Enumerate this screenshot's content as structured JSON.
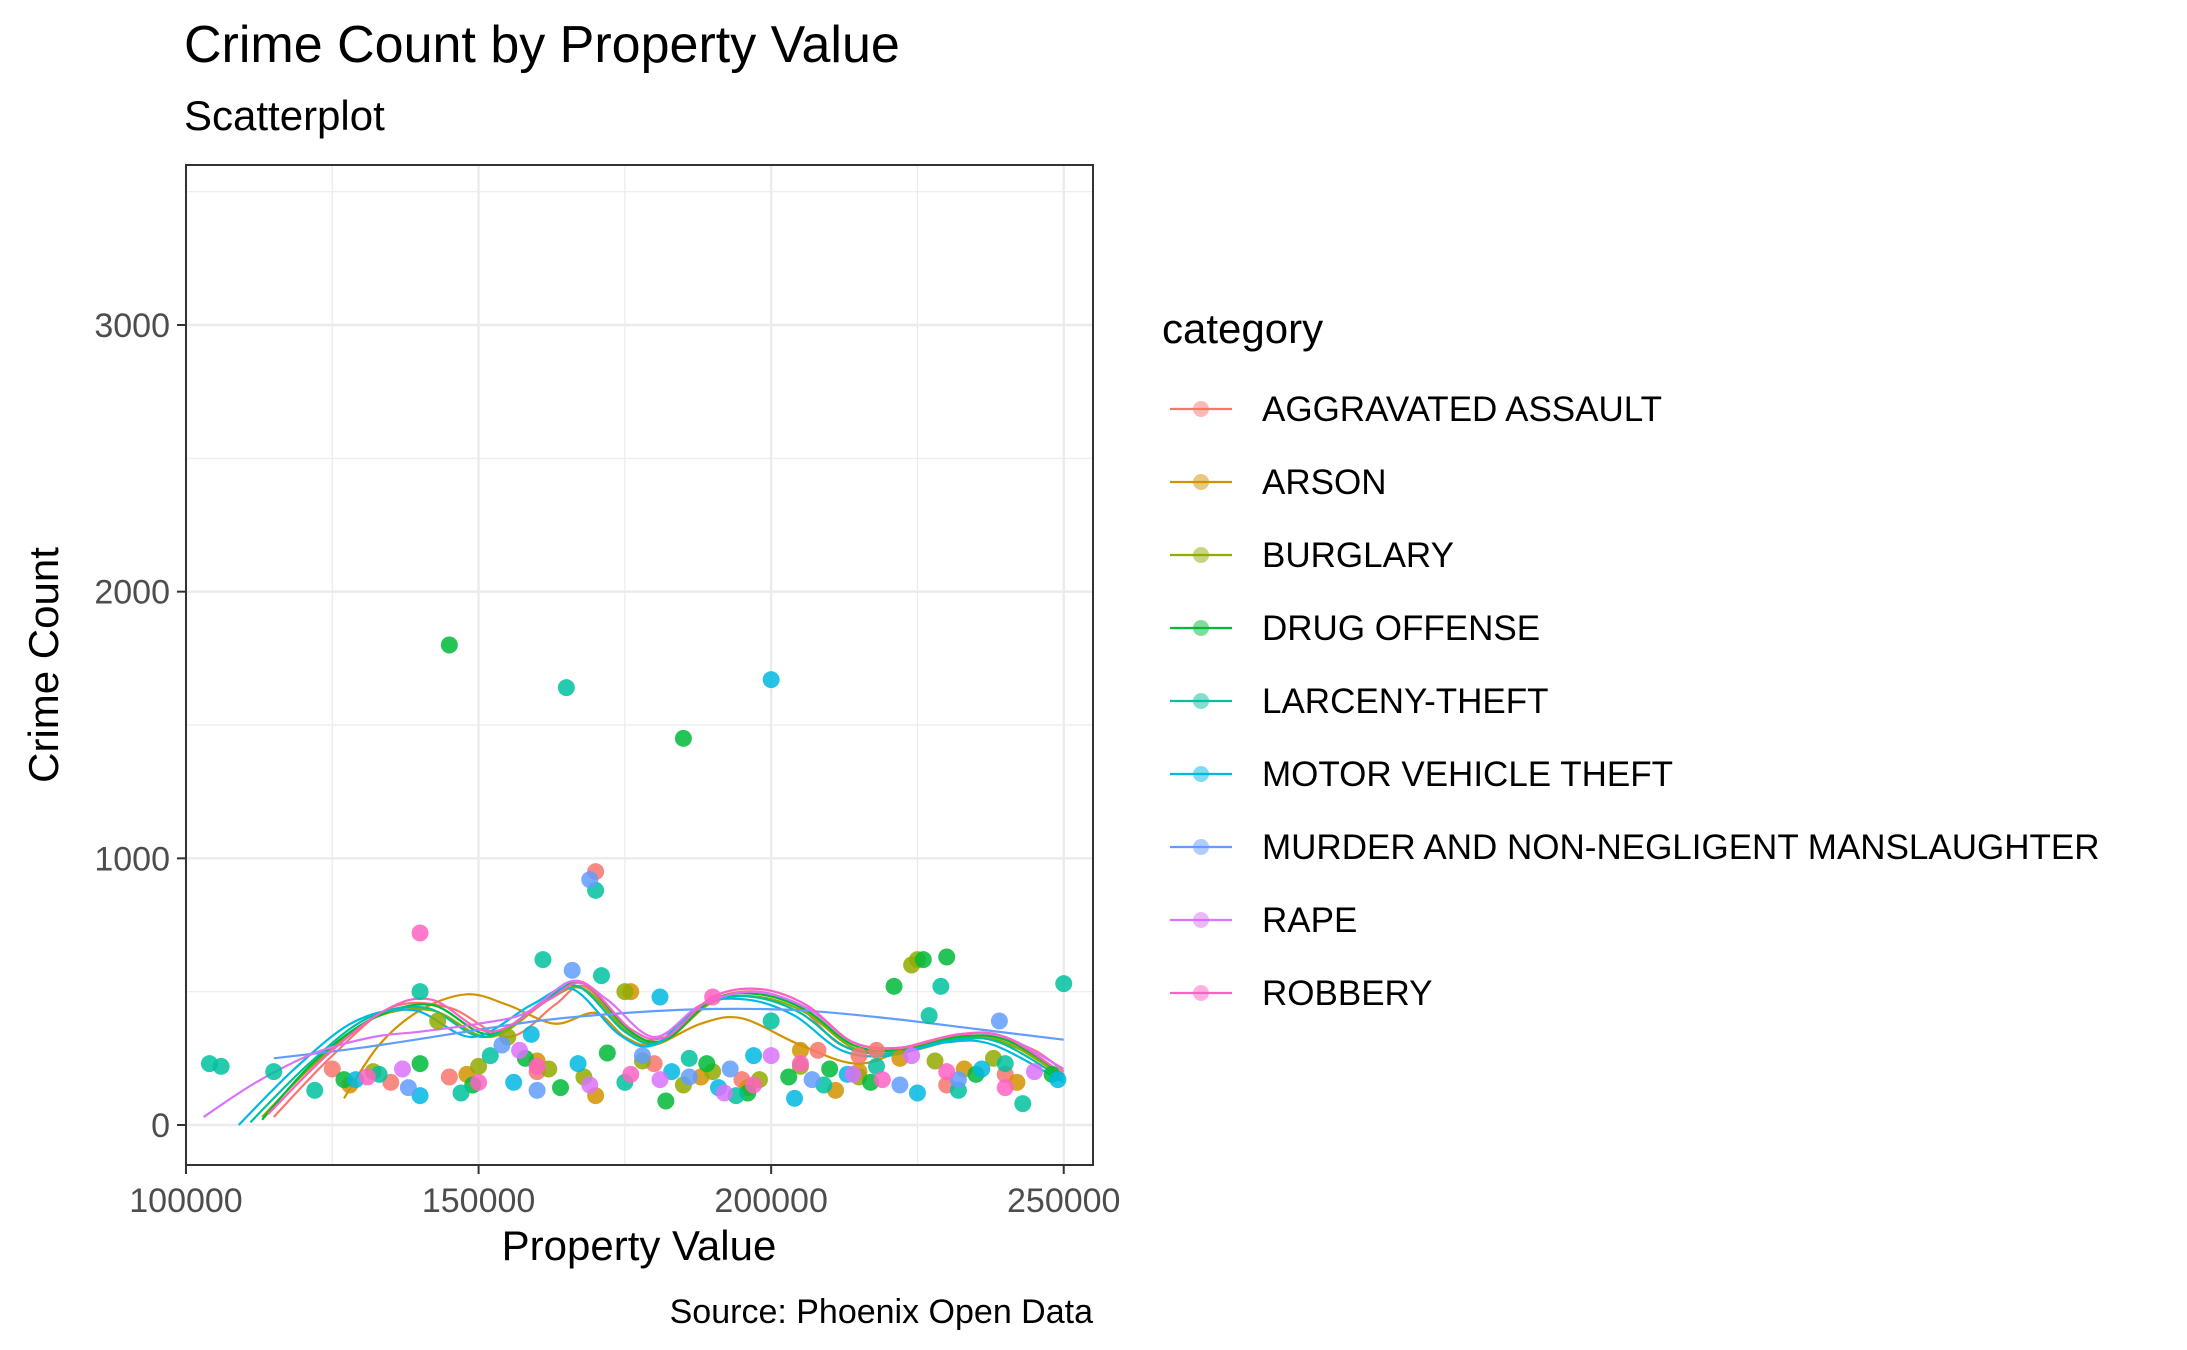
{
  "chart_data": {
    "type": "scatter",
    "title": "Crime Count by Property Value",
    "subtitle": "Scatterplot",
    "xlabel": "Property Value",
    "ylabel": "Crime Count",
    "caption": "Source: Phoenix Open Data",
    "xlim": [
      100000,
      255000
    ],
    "ylim": [
      -150,
      3600
    ],
    "x_ticks": [
      100000,
      150000,
      200000,
      250000
    ],
    "x_tick_labels": [
      "100000",
      "150000",
      "200000",
      "250000"
    ],
    "y_ticks": [
      0,
      1000,
      2000,
      3000
    ],
    "y_tick_labels": [
      "0",
      "1000",
      "2000",
      "3000"
    ],
    "grid": true,
    "legend": {
      "title": "category",
      "placement": "right"
    },
    "series": [
      {
        "name": "AGGRAVATED ASSAULT",
        "color": "#F8766D",
        "points": [
          [
            170000,
            950
          ],
          [
            208000,
            280
          ],
          [
            215000,
            260
          ],
          [
            218000,
            280
          ],
          [
            160000,
            200
          ],
          [
            145000,
            180
          ],
          [
            195000,
            170
          ],
          [
            230000,
            150
          ],
          [
            125000,
            210
          ],
          [
            180000,
            230
          ],
          [
            240000,
            190
          ],
          [
            135000,
            160
          ]
        ],
        "smooth": [
          [
            115000,
            30
          ],
          [
            125000,
            260
          ],
          [
            135000,
            440
          ],
          [
            145000,
            440
          ],
          [
            155000,
            330
          ],
          [
            163000,
            450
          ],
          [
            168000,
            520
          ],
          [
            175000,
            370
          ],
          [
            180000,
            320
          ],
          [
            190000,
            470
          ],
          [
            198000,
            500
          ],
          [
            205000,
            440
          ],
          [
            212000,
            300
          ],
          [
            220000,
            280
          ],
          [
            230000,
            330
          ],
          [
            238000,
            330
          ],
          [
            245000,
            280
          ],
          [
            250000,
            200
          ]
        ]
      },
      {
        "name": "ARSON",
        "color": "#D39200",
        "points": [
          [
            205000,
            280
          ],
          [
            222000,
            250
          ],
          [
            188000,
            180
          ],
          [
            160000,
            240
          ],
          [
            148000,
            190
          ],
          [
            233000,
            210
          ],
          [
            128000,
            150
          ],
          [
            176000,
            500
          ],
          [
            211000,
            130
          ],
          [
            196000,
            140
          ],
          [
            242000,
            160
          ],
          [
            215000,
            200
          ],
          [
            170000,
            110
          ]
        ],
        "smooth": [
          [
            127000,
            100
          ],
          [
            133000,
            300
          ],
          [
            140000,
            430
          ],
          [
            148000,
            490
          ],
          [
            155000,
            450
          ],
          [
            163000,
            380
          ],
          [
            170000,
            420
          ],
          [
            175000,
            330
          ],
          [
            180000,
            300
          ],
          [
            188000,
            380
          ],
          [
            195000,
            400
          ],
          [
            205000,
            300
          ],
          [
            215000,
            230
          ],
          [
            225000,
            300
          ],
          [
            235000,
            330
          ],
          [
            245000,
            260
          ],
          [
            250000,
            160
          ]
        ]
      },
      {
        "name": "BURGLARY",
        "color": "#93AA00",
        "points": [
          [
            225000,
            620
          ],
          [
            224000,
            600
          ],
          [
            175000,
            500
          ],
          [
            143000,
            390
          ],
          [
            155000,
            330
          ],
          [
            162000,
            210
          ],
          [
            178000,
            240
          ],
          [
            190000,
            200
          ],
          [
            205000,
            220
          ],
          [
            132000,
            200
          ],
          [
            228000,
            240
          ],
          [
            168000,
            180
          ],
          [
            185000,
            150
          ],
          [
            238000,
            250
          ],
          [
            198000,
            170
          ],
          [
            150000,
            220
          ],
          [
            215000,
            180
          ]
        ],
        "smooth": [
          [
            113000,
            30
          ],
          [
            122000,
            230
          ],
          [
            132000,
            400
          ],
          [
            142000,
            430
          ],
          [
            152000,
            330
          ],
          [
            162000,
            470
          ],
          [
            168000,
            510
          ],
          [
            176000,
            340
          ],
          [
            182000,
            320
          ],
          [
            190000,
            460
          ],
          [
            198000,
            480
          ],
          [
            206000,
            420
          ],
          [
            214000,
            290
          ],
          [
            222000,
            270
          ],
          [
            232000,
            320
          ],
          [
            240000,
            310
          ],
          [
            250000,
            180
          ]
        ]
      },
      {
        "name": "DRUG OFFENSE",
        "color": "#00BA38",
        "points": [
          [
            145000,
            1800
          ],
          [
            185000,
            1450
          ],
          [
            226000,
            620
          ],
          [
            230000,
            630
          ],
          [
            221000,
            520
          ],
          [
            140000,
            230
          ],
          [
            158000,
            250
          ],
          [
            172000,
            270
          ],
          [
            189000,
            230
          ],
          [
            203000,
            180
          ],
          [
            217000,
            160
          ],
          [
            235000,
            190
          ],
          [
            127000,
            170
          ],
          [
            164000,
            140
          ],
          [
            196000,
            120
          ],
          [
            248000,
            190
          ],
          [
            182000,
            90
          ],
          [
            149000,
            150
          ],
          [
            210000,
            210
          ]
        ],
        "smooth": [
          [
            113000,
            20
          ],
          [
            122000,
            240
          ],
          [
            132000,
            400
          ],
          [
            142000,
            450
          ],
          [
            152000,
            340
          ],
          [
            162000,
            480
          ],
          [
            168000,
            530
          ],
          [
            176000,
            350
          ],
          [
            182000,
            320
          ],
          [
            190000,
            470
          ],
          [
            198000,
            490
          ],
          [
            206000,
            430
          ],
          [
            214000,
            300
          ],
          [
            222000,
            280
          ],
          [
            232000,
            330
          ],
          [
            240000,
            320
          ],
          [
            250000,
            190
          ]
        ]
      },
      {
        "name": "LARCENY-THEFT",
        "color": "#00C19F",
        "points": [
          [
            165000,
            1640
          ],
          [
            170000,
            880
          ],
          [
            250000,
            530
          ],
          [
            229000,
            520
          ],
          [
            161000,
            620
          ],
          [
            171000,
            560
          ],
          [
            140000,
            500
          ],
          [
            227000,
            410
          ],
          [
            200000,
            390
          ],
          [
            152000,
            260
          ],
          [
            186000,
            250
          ],
          [
            218000,
            220
          ],
          [
            240000,
            230
          ],
          [
            133000,
            190
          ],
          [
            175000,
            160
          ],
          [
            209000,
            150
          ],
          [
            194000,
            110
          ],
          [
            147000,
            120
          ],
          [
            122000,
            130
          ],
          [
            232000,
            130
          ],
          [
            243000,
            80
          ],
          [
            104000,
            230
          ],
          [
            106000,
            220
          ],
          [
            115000,
            200
          ]
        ],
        "smooth": [
          [
            111000,
            10
          ],
          [
            121000,
            230
          ],
          [
            131000,
            400
          ],
          [
            141000,
            440
          ],
          [
            151000,
            330
          ],
          [
            161000,
            460
          ],
          [
            167000,
            520
          ],
          [
            175000,
            350
          ],
          [
            181000,
            310
          ],
          [
            189000,
            460
          ],
          [
            197000,
            480
          ],
          [
            205000,
            420
          ],
          [
            213000,
            290
          ],
          [
            221000,
            270
          ],
          [
            231000,
            320
          ],
          [
            239000,
            310
          ],
          [
            250000,
            170
          ]
        ]
      },
      {
        "name": "MOTOR VEHICLE THEFT",
        "color": "#00B9E3",
        "points": [
          [
            200000,
            1670
          ],
          [
            181000,
            480
          ],
          [
            159000,
            340
          ],
          [
            197000,
            260
          ],
          [
            140000,
            110
          ],
          [
            167000,
            230
          ],
          [
            183000,
            200
          ],
          [
            213000,
            190
          ],
          [
            236000,
            210
          ],
          [
            156000,
            160
          ],
          [
            191000,
            140
          ],
          [
            225000,
            120
          ],
          [
            129000,
            170
          ],
          [
            204000,
            100
          ],
          [
            249000,
            170
          ]
        ],
        "smooth": [
          [
            109000,
            0
          ],
          [
            119000,
            220
          ],
          [
            129000,
            390
          ],
          [
            139000,
            430
          ],
          [
            149000,
            330
          ],
          [
            159000,
            450
          ],
          [
            166000,
            510
          ],
          [
            174000,
            340
          ],
          [
            180000,
            300
          ],
          [
            188000,
            450
          ],
          [
            196000,
            470
          ],
          [
            204000,
            410
          ],
          [
            212000,
            280
          ],
          [
            220000,
            260
          ],
          [
            230000,
            310
          ],
          [
            238000,
            300
          ],
          [
            250000,
            160
          ]
        ]
      },
      {
        "name": "MURDER AND NON-NEGLIGENT MANSLAUGHTER",
        "color": "#619CFF",
        "points": [
          [
            166000,
            580
          ],
          [
            169000,
            920
          ],
          [
            239000,
            390
          ],
          [
            154000,
            300
          ],
          [
            178000,
            260
          ],
          [
            193000,
            210
          ],
          [
            207000,
            170
          ],
          [
            222000,
            150
          ],
          [
            138000,
            140
          ],
          [
            186000,
            180
          ],
          [
            160000,
            130
          ],
          [
            232000,
            170
          ]
        ],
        "smooth": [
          [
            115000,
            250
          ],
          [
            130000,
            290
          ],
          [
            145000,
            340
          ],
          [
            160000,
            390
          ],
          [
            175000,
            420
          ],
          [
            190000,
            435
          ],
          [
            205000,
            430
          ],
          [
            220000,
            400
          ],
          [
            235000,
            360
          ],
          [
            250000,
            320
          ]
        ]
      },
      {
        "name": "RAPE",
        "color": "#DB72FB",
        "points": [
          [
            200000,
            260
          ],
          [
            224000,
            260
          ],
          [
            157000,
            280
          ],
          [
            181000,
            170
          ],
          [
            137000,
            210
          ],
          [
            214000,
            190
          ],
          [
            169000,
            150
          ],
          [
            192000,
            120
          ],
          [
            245000,
            200
          ]
        ],
        "smooth": [
          [
            103000,
            30
          ],
          [
            112000,
            160
          ],
          [
            122000,
            270
          ],
          [
            132000,
            330
          ],
          [
            140000,
            350
          ],
          [
            150000,
            380
          ],
          [
            158000,
            420
          ],
          [
            166000,
            540
          ],
          [
            172000,
            470
          ],
          [
            180000,
            330
          ],
          [
            188000,
            450
          ],
          [
            197000,
            500
          ],
          [
            206000,
            440
          ],
          [
            214000,
            310
          ],
          [
            222000,
            290
          ],
          [
            232000,
            340
          ],
          [
            240000,
            330
          ],
          [
            250000,
            210
          ]
        ]
      },
      {
        "name": "ROBBERY",
        "color": "#FF61C3",
        "points": [
          [
            140000,
            720
          ],
          [
            190000,
            480
          ],
          [
            160000,
            220
          ],
          [
            176000,
            190
          ],
          [
            205000,
            230
          ],
          [
            219000,
            170
          ],
          [
            150000,
            160
          ],
          [
            230000,
            200
          ],
          [
            131000,
            180
          ],
          [
            197000,
            150
          ],
          [
            240000,
            140
          ]
        ],
        "smooth": [
          [
            114000,
            40
          ],
          [
            124000,
            260
          ],
          [
            134000,
            430
          ],
          [
            142000,
            470
          ],
          [
            152000,
            350
          ],
          [
            162000,
            470
          ],
          [
            168000,
            530
          ],
          [
            176000,
            360
          ],
          [
            182000,
            330
          ],
          [
            190000,
            480
          ],
          [
            198000,
            510
          ],
          [
            206000,
            450
          ],
          [
            214000,
            310
          ],
          [
            222000,
            290
          ],
          [
            232000,
            340
          ],
          [
            240000,
            330
          ],
          [
            250000,
            190
          ]
        ]
      }
    ]
  }
}
